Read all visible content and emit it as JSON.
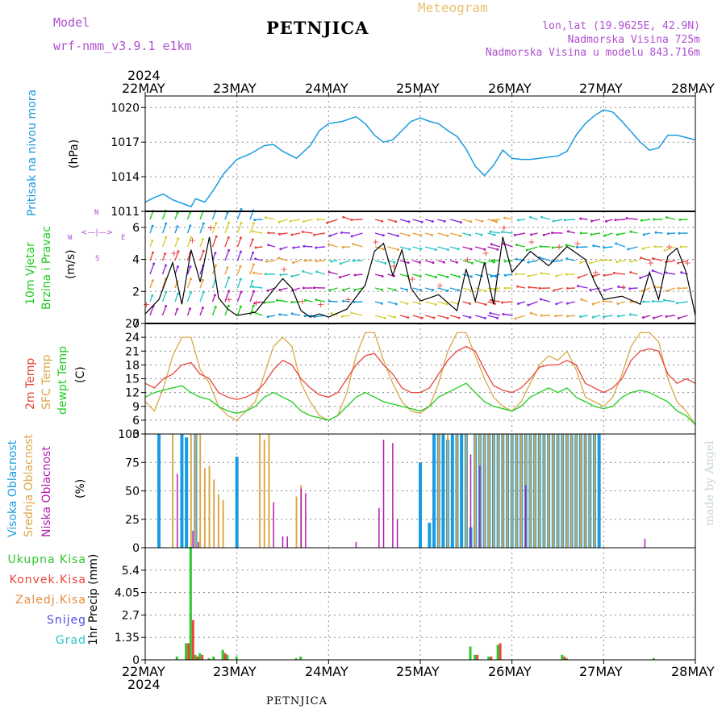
{
  "header": {
    "model_label": "Model",
    "model_name": "wrf-nmm_v3.9.1 e1km",
    "station": "PETNJICA",
    "meteogram": "Meteogram",
    "lonlat": "lon,lat (19.9625E, 42.9N)",
    "elevation": "Nadmorska Visina 725m",
    "model_elevation": "Nadmorska Visina u modelu 843.716m",
    "footer_station": "PETNJICA",
    "credit": "made by Angel"
  },
  "axis": {
    "year": "2024",
    "dates": [
      "22MAY",
      "23MAY",
      "24MAY",
      "25MAY",
      "26MAY",
      "27MAY",
      "28MAY"
    ]
  },
  "labels": {
    "pressure": [
      "Pritisak na nivou mora",
      "(hPa)"
    ],
    "wind": [
      "10m Vjetar",
      "Brzina i Pravac",
      "(m/s)"
    ],
    "compass": {
      "n": "N",
      "w": "W",
      "e": "E",
      "s": "S"
    },
    "temp": [
      "2m Temp",
      "SFC Temp",
      "dewpt Temp",
      "(C)"
    ],
    "cloud": [
      "Visoka Oblacnost",
      "Srednja Oblacnost",
      "Niska Oblacnost",
      "(%)"
    ],
    "precip_axis": "1hr Precip (mm)",
    "precip_legend": [
      "Ukupna Kisa",
      "Konvek.Kisa",
      "Zaledj.Kisa",
      "Snijeg",
      "Grad"
    ]
  },
  "colors": {
    "pressure": "#1a9be0",
    "t2m": "#e8453c",
    "tsfc": "#dba84a",
    "dewpt": "#1fcc1f",
    "cloud_high": "#1a9be0",
    "cloud_mid": "#dba84a",
    "cloud_low": "#b01cb0",
    "rain_total": "#2fc62f",
    "rain_conv": "#e8453c",
    "rain_freeze": "#e88a3c",
    "snow": "#5050e0",
    "hail": "#2ac6c6",
    "grid": "#8a8a8a"
  },
  "chart_data": [
    {
      "type": "line",
      "panel": "pressure",
      "x_unit": "days since 22MAY 00UTC",
      "ylim": [
        1011,
        1021
      ],
      "yticks": [
        "1011",
        "1014",
        "1017",
        "1020"
      ],
      "series": [
        {
          "name": "Pritisak na nivou mora",
          "x": [
            0,
            0.1,
            0.2,
            0.3,
            0.4,
            0.5,
            0.55,
            0.65,
            0.75,
            0.85,
            1.0,
            1.15,
            1.3,
            1.4,
            1.5,
            1.65,
            1.8,
            1.9,
            2.0,
            2.15,
            2.3,
            2.4,
            2.5,
            2.6,
            2.7,
            2.8,
            2.9,
            3.0,
            3.1,
            3.2,
            3.3,
            3.4,
            3.5,
            3.6,
            3.7,
            3.8,
            3.9,
            4.0,
            4.1,
            4.2,
            4.3,
            4.4,
            4.5,
            4.6,
            4.7,
            4.8,
            4.9,
            5.0,
            5.1,
            5.2,
            5.3,
            5.4,
            5.5,
            5.6,
            5.7,
            5.8,
            5.9,
            6.0
          ],
          "values": [
            1011.8,
            1012.2,
            1012.5,
            1012.0,
            1011.7,
            1011.4,
            1012.1,
            1011.8,
            1012.9,
            1014.2,
            1015.5,
            1016.0,
            1016.7,
            1016.8,
            1016.2,
            1015.6,
            1016.7,
            1018.0,
            1018.6,
            1018.8,
            1019.2,
            1018.6,
            1017.6,
            1017.0,
            1017.2,
            1018.0,
            1018.8,
            1019.1,
            1018.8,
            1018.6,
            1018.0,
            1017.5,
            1016.4,
            1014.9,
            1014.1,
            1015.0,
            1016.3,
            1015.6,
            1015.5,
            1015.5,
            1015.6,
            1015.7,
            1015.8,
            1016.2,
            1017.6,
            1018.6,
            1019.3,
            1019.8,
            1019.6,
            1018.8,
            1017.9,
            1017.0,
            1016.3,
            1016.5,
            1017.6,
            1017.6,
            1017.4,
            1017.2
          ]
        }
      ]
    },
    {
      "type": "line",
      "panel": "wind",
      "ylim": [
        0,
        7
      ],
      "yticks": [
        "0",
        "2",
        "4",
        "6"
      ],
      "series": [
        {
          "name": "10m Vjetar Brzina",
          "x": [
            0,
            0.15,
            0.3,
            0.4,
            0.5,
            0.6,
            0.7,
            0.8,
            0.9,
            1.0,
            1.2,
            1.4,
            1.5,
            1.6,
            1.7,
            1.8,
            1.9,
            2.0,
            2.2,
            2.4,
            2.5,
            2.6,
            2.7,
            2.8,
            2.9,
            3.0,
            3.2,
            3.4,
            3.5,
            3.6,
            3.7,
            3.8,
            3.9,
            4.0,
            4.2,
            4.4,
            4.5,
            4.6,
            4.7,
            4.8,
            4.9,
            5.0,
            5.2,
            5.4,
            5.5,
            5.6,
            5.7,
            5.8,
            5.9,
            6.0
          ],
          "values": [
            0.6,
            1.5,
            3.8,
            1.2,
            4.6,
            2.6,
            5.4,
            1.6,
            0.9,
            0.5,
            0.7,
            2.1,
            2.8,
            2.2,
            0.8,
            0.4,
            0.6,
            0.4,
            0.9,
            2.4,
            4.5,
            5.0,
            3.0,
            4.6,
            2.2,
            1.4,
            1.8,
            0.8,
            3.4,
            1.4,
            3.8,
            1.2,
            5.4,
            3.2,
            4.5,
            3.6,
            4.2,
            4.8,
            4.4,
            4.0,
            2.6,
            1.5,
            1.7,
            1.2,
            3.2,
            1.5,
            4.2,
            4.7,
            3.2,
            0.5
          ]
        }
      ]
    },
    {
      "type": "line",
      "panel": "temperature",
      "ylim": [
        3,
        27
      ],
      "yticks": [
        "3",
        "6",
        "9",
        "12",
        "15",
        "18",
        "21",
        "24",
        "27"
      ],
      "x": [
        0,
        0.1,
        0.2,
        0.3,
        0.4,
        0.5,
        0.6,
        0.7,
        0.8,
        0.9,
        1.0,
        1.1,
        1.2,
        1.3,
        1.4,
        1.5,
        1.6,
        1.7,
        1.8,
        1.9,
        2.0,
        2.1,
        2.2,
        2.3,
        2.4,
        2.5,
        2.6,
        2.7,
        2.8,
        2.9,
        3.0,
        3.1,
        3.2,
        3.3,
        3.4,
        3.5,
        3.6,
        3.7,
        3.8,
        3.9,
        4.0,
        4.1,
        4.2,
        4.3,
        4.4,
        4.5,
        4.6,
        4.7,
        4.8,
        4.9,
        5.0,
        5.1,
        5.2,
        5.3,
        5.4,
        5.5,
        5.6,
        5.7,
        5.8,
        5.9,
        6.0
      ],
      "series": [
        {
          "name": "2m Temp",
          "values": [
            14,
            13,
            15,
            16,
            18,
            18.5,
            16,
            15,
            12,
            11,
            10.5,
            11,
            12,
            14,
            17,
            19,
            18,
            15,
            13,
            11.5,
            11,
            12,
            15,
            18,
            20,
            20.5,
            18,
            16,
            13,
            12,
            12,
            13,
            16,
            19,
            21,
            22,
            21,
            17,
            13.5,
            12.5,
            12,
            13,
            15,
            17.5,
            18,
            18,
            19,
            18,
            14,
            13,
            12,
            13,
            15,
            19,
            21,
            21.5,
            21,
            16,
            14,
            15,
            14
          ]
        },
        {
          "name": "SFC Temp",
          "values": [
            10,
            8,
            13,
            20,
            24,
            24,
            17,
            14,
            9,
            7,
            6,
            8,
            10,
            16,
            22,
            24,
            22,
            14,
            10,
            7,
            6,
            7,
            12,
            20,
            25,
            25,
            19,
            14,
            10,
            8,
            7.5,
            9,
            14,
            21,
            25,
            25,
            20,
            15,
            11,
            9,
            8,
            10,
            14,
            18,
            20,
            19,
            21,
            17,
            11,
            10,
            9,
            11,
            16,
            22,
            25,
            25,
            23,
            15,
            10,
            8,
            5
          ]
        },
        {
          "name": "dewpt Temp",
          "values": [
            11,
            12,
            12.5,
            13,
            13.5,
            12,
            11,
            10.5,
            9,
            8,
            7.5,
            8,
            9,
            11,
            12,
            11,
            10,
            8,
            7,
            6.5,
            6,
            7,
            9,
            11,
            12,
            11,
            10,
            9.5,
            9,
            8.5,
            8,
            9,
            11,
            12,
            13,
            14,
            12,
            10,
            9,
            8.5,
            8,
            9,
            11,
            12,
            13,
            12,
            13,
            11,
            10,
            9,
            8.5,
            9,
            11,
            12,
            12.5,
            12,
            11,
            10,
            8,
            7,
            5
          ]
        }
      ]
    },
    {
      "type": "bar",
      "panel": "cloud",
      "ylim": [
        0,
        100
      ],
      "yticks": [
        "0",
        "25",
        "50",
        "75",
        "100"
      ],
      "series": [
        {
          "name": "Visoka Oblacnost",
          "x": [
            0.15,
            0.4,
            0.45,
            0.55,
            1.0,
            3.0,
            3.1,
            3.15,
            3.2,
            3.25,
            3.3,
            3.35,
            3.4,
            3.45,
            3.5,
            3.55,
            3.6,
            3.65,
            3.7,
            3.75,
            3.8,
            3.85,
            3.9,
            3.95,
            4.0,
            4.05,
            4.1,
            4.15,
            4.2,
            4.25,
            4.3,
            4.35,
            4.4,
            4.45,
            4.5,
            4.55,
            4.6,
            4.65,
            4.7,
            4.75,
            4.8,
            4.85,
            4.9,
            4.95
          ],
          "values": [
            100,
            100,
            97,
            100,
            80,
            75,
            22,
            100,
            100,
            100,
            95,
            100,
            100,
            100,
            100,
            18,
            100,
            100,
            100,
            100,
            100,
            100,
            100,
            100,
            100,
            100,
            100,
            100,
            100,
            100,
            100,
            100,
            100,
            100,
            100,
            100,
            100,
            100,
            100,
            100,
            100,
            100,
            100,
            100
          ]
        },
        {
          "name": "Srednja Oblacnost",
          "x": [
            0.3,
            0.5,
            0.55,
            0.6,
            0.65,
            0.7,
            0.75,
            0.8,
            0.85,
            0.9,
            1.25,
            1.3,
            1.35,
            1.65,
            1.7,
            3.2,
            3.3,
            3.4,
            3.5,
            3.6,
            3.65,
            3.7,
            3.75,
            3.8,
            3.85,
            3.9,
            3.95,
            4.0,
            4.05,
            4.1,
            4.15,
            4.2,
            4.25,
            4.3,
            4.35,
            4.4,
            4.45,
            4.5,
            4.55,
            4.6,
            4.65,
            4.7,
            4.75,
            4.8,
            4.85,
            4.9
          ],
          "values": [
            100,
            100,
            100,
            100,
            70,
            72,
            60,
            47,
            42,
            0,
            100,
            95,
            100,
            45,
            55,
            100,
            100,
            100,
            100,
            100,
            100,
            100,
            100,
            100,
            100,
            100,
            100,
            100,
            100,
            100,
            100,
            100,
            100,
            100,
            100,
            100,
            100,
            100,
            100,
            100,
            100,
            100,
            100,
            100,
            100,
            100
          ]
        },
        {
          "name": "Niska Oblacnost",
          "x": [
            0.35,
            0.52,
            0.58,
            1.4,
            1.5,
            1.55,
            1.7,
            1.75,
            2.3,
            2.55,
            2.6,
            2.7,
            2.75,
            3.55,
            3.65,
            4.15,
            5.45
          ],
          "values": [
            65,
            15,
            5,
            40,
            10,
            10,
            52,
            48,
            5,
            35,
            95,
            92,
            25,
            82,
            72,
            55,
            8
          ]
        }
      ]
    },
    {
      "type": "bar",
      "panel": "precip",
      "ylim": [
        0,
        6.75
      ],
      "yticks": [
        "0",
        "1.35",
        "2.7",
        "4.05",
        "5.4"
      ],
      "series": [
        {
          "name": "Ukupna Kisa",
          "x": [
            0.35,
            0.45,
            0.5,
            0.55,
            0.6,
            0.7,
            0.75,
            0.85,
            0.9,
            1.0,
            1.65,
            1.7,
            3.55,
            3.6,
            3.75,
            3.85,
            4.55,
            4.6,
            5.55
          ],
          "values": [
            0.2,
            1.0,
            6.8,
            0.3,
            0.4,
            0.1,
            0.2,
            0.6,
            0.3,
            0.2,
            0.1,
            0.2,
            0.8,
            0.3,
            0.2,
            0.9,
            0.3,
            0.1,
            0.1
          ]
        },
        {
          "name": "Konvek.Kisa",
          "x": [
            0.45,
            0.5,
            0.55,
            0.6,
            0.85,
            3.6,
            3.75,
            3.85,
            4.55
          ],
          "values": [
            1.0,
            2.4,
            0.2,
            0.3,
            0.4,
            0.3,
            0.2,
            1.0,
            0.2
          ]
        }
      ]
    }
  ]
}
